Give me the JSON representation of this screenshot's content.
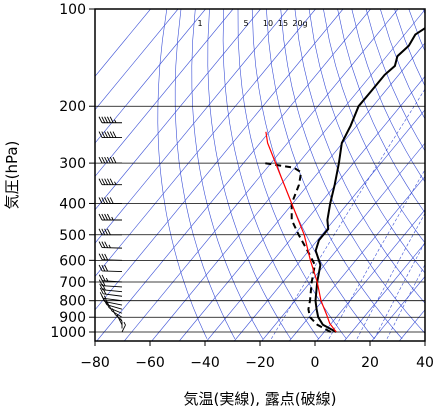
{
  "chart_data": {
    "type": "line",
    "subtype": "skew-T log-P sounding",
    "xlabel": "気温(実線), 露点(破線)",
    "ylabel": "気圧(hPa)",
    "x_ticks": [
      -80,
      -60,
      -40,
      -20,
      0,
      20,
      40
    ],
    "x_tick_labels": [
      "−80",
      "−60",
      "−40",
      "−20",
      "0",
      "20",
      "40"
    ],
    "y_ticks": [
      100,
      200,
      300,
      400,
      500,
      600,
      700,
      800,
      900,
      1000
    ],
    "y_tick_labels": [
      "100",
      "200",
      "300",
      "400",
      "500",
      "600",
      "700",
      "800",
      "900",
      "1000"
    ],
    "xlim": [
      -80,
      40
    ],
    "ylim": [
      1050,
      100
    ],
    "y_scale": "log",
    "grid": true,
    "mixing_ratio_labels": [
      "1",
      "5",
      "10",
      "15",
      "20g"
    ],
    "colors": {
      "temperature": "#000000",
      "dewpoint": "#000000",
      "parcel": "#ff0000",
      "background_lines": "#3a4fd6",
      "grid": "#000000"
    },
    "series": [
      {
        "key": "temperature",
        "style": "solid",
        "points": [
          {
            "p": 1000,
            "t": 5
          },
          {
            "p": 950,
            "t": -2
          },
          {
            "p": 900,
            "t": -6
          },
          {
            "p": 850,
            "t": -9
          },
          {
            "p": 800,
            "t": -12
          },
          {
            "p": 700,
            "t": -17
          },
          {
            "p": 620,
            "t": -21
          },
          {
            "p": 560,
            "t": -27
          },
          {
            "p": 520,
            "t": -29
          },
          {
            "p": 500,
            "t": -29
          },
          {
            "p": 480,
            "t": -29
          },
          {
            "p": 450,
            "t": -32
          },
          {
            "p": 400,
            "t": -36
          },
          {
            "p": 350,
            "t": -40
          },
          {
            "p": 300,
            "t": -45
          },
          {
            "p": 260,
            "t": -50
          },
          {
            "p": 230,
            "t": -52
          },
          {
            "p": 200,
            "t": -55
          },
          {
            "p": 180,
            "t": -55
          },
          {
            "p": 160,
            "t": -55
          },
          {
            "p": 150,
            "t": -54
          },
          {
            "p": 140,
            "t": -56
          },
          {
            "p": 130,
            "t": -55
          },
          {
            "p": 120,
            "t": -56
          },
          {
            "p": 110,
            "t": -53
          },
          {
            "p": 100,
            "t": -54
          }
        ]
      },
      {
        "key": "dewpoint",
        "style": "dashed",
        "points": [
          {
            "p": 1000,
            "t": 3
          },
          {
            "p": 950,
            "t": -4
          },
          {
            "p": 900,
            "t": -9
          },
          {
            "p": 850,
            "t": -12
          },
          {
            "p": 800,
            "t": -14
          },
          {
            "p": 700,
            "t": -19
          },
          {
            "p": 620,
            "t": -23
          },
          {
            "p": 560,
            "t": -30
          },
          {
            "p": 500,
            "t": -38
          },
          {
            "p": 450,
            "t": -45
          },
          {
            "p": 400,
            "t": -50
          },
          {
            "p": 350,
            "t": -53
          },
          {
            "p": 320,
            "t": -56
          },
          {
            "p": 310,
            "t": -60
          },
          {
            "p": 300,
            "t": -72
          }
        ]
      },
      {
        "key": "parcel",
        "style": "solid",
        "points": [
          {
            "p": 1000,
            "t": 5
          },
          {
            "p": 940,
            "t": 0
          },
          {
            "p": 880,
            "t": -4
          },
          {
            "p": 800,
            "t": -10
          },
          {
            "p": 700,
            "t": -17
          },
          {
            "p": 600,
            "t": -26
          },
          {
            "p": 500,
            "t": -36
          },
          {
            "p": 400,
            "t": -50
          },
          {
            "p": 300,
            "t": -68
          },
          {
            "p": 260,
            "t": -77
          },
          {
            "p": 240,
            "t": -81
          }
        ]
      }
    ],
    "wind_barbs": [
      {
        "p": 1000,
        "speed": 5,
        "dir": 170
      },
      {
        "p": 975,
        "speed": 5,
        "dir": 180
      },
      {
        "p": 950,
        "speed": 5,
        "dir": 190
      },
      {
        "p": 925,
        "speed": 10,
        "dir": 200
      },
      {
        "p": 900,
        "speed": 10,
        "dir": 210
      },
      {
        "p": 875,
        "speed": 10,
        "dir": 220
      },
      {
        "p": 850,
        "speed": 15,
        "dir": 230
      },
      {
        "p": 825,
        "speed": 15,
        "dir": 240
      },
      {
        "p": 800,
        "speed": 15,
        "dir": 250
      },
      {
        "p": 775,
        "speed": 20,
        "dir": 250
      },
      {
        "p": 750,
        "speed": 20,
        "dir": 255
      },
      {
        "p": 725,
        "speed": 20,
        "dir": 260
      },
      {
        "p": 700,
        "speed": 25,
        "dir": 260
      },
      {
        "p": 650,
        "speed": 30,
        "dir": 265
      },
      {
        "p": 600,
        "speed": 30,
        "dir": 265
      },
      {
        "p": 550,
        "speed": 35,
        "dir": 265
      },
      {
        "p": 500,
        "speed": 40,
        "dir": 270
      },
      {
        "p": 450,
        "speed": 45,
        "dir": 270
      },
      {
        "p": 400,
        "speed": 50,
        "dir": 270
      },
      {
        "p": 350,
        "speed": 55,
        "dir": 270
      },
      {
        "p": 300,
        "speed": 60,
        "dir": 270
      },
      {
        "p": 250,
        "speed": 60,
        "dir": 270
      },
      {
        "p": 225,
        "speed": 55,
        "dir": 270
      }
    ]
  }
}
